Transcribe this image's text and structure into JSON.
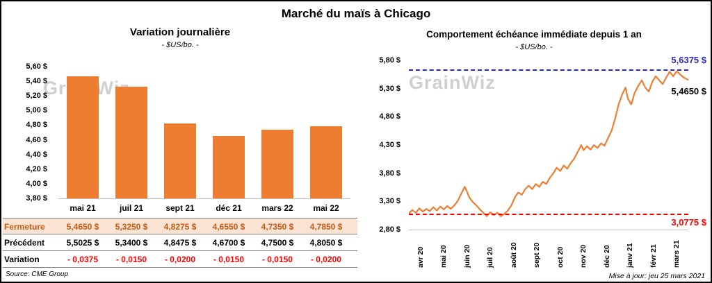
{
  "page": {
    "title": "Marché du maïs à Chicago",
    "source_note": "Source: CME Group",
    "update_note": "Mise à jour: jeu 25 mars 2021",
    "watermark": "GrainWiz"
  },
  "left_panel": {
    "title": "Variation journalière",
    "subtitle": "- $US/bo. -"
  },
  "right_panel": {
    "title": "Comportement échéance immédiate depuis 1 an",
    "subtitle": "- $US/bo. -",
    "high_label": "5,6375 $",
    "last_label": "5,4650 $",
    "low_label": "3,0775 $"
  },
  "table": {
    "rows": [
      {
        "label": "Fermeture",
        "values": [
          "5,4650 $",
          "5,3250 $",
          "4,8275 $",
          "4,6550 $",
          "4,7350 $",
          "4,7850 $"
        ]
      },
      {
        "label": "Précédent",
        "values": [
          "5,5025 $",
          "5,3400 $",
          "4,8475 $",
          "4,6700 $",
          "4,7500 $",
          "4,8050 $"
        ]
      },
      {
        "label": "Variation",
        "values": [
          "- 0,0375",
          "- 0,0150",
          "- 0,0200",
          "- 0,0150",
          "- 0,0150",
          "- 0,0200"
        ]
      }
    ]
  },
  "chart_data": [
    {
      "type": "bar",
      "title": "Variation journalière",
      "subtitle": "- $US/bo. -",
      "categories": [
        "mai 21",
        "juil 21",
        "sept 21",
        "déc 21",
        "mars 22",
        "mai 22"
      ],
      "values": [
        5.465,
        5.325,
        4.8275,
        4.655,
        4.735,
        4.785
      ],
      "ylim": [
        3.8,
        5.6
      ],
      "y_ticks": [
        "5,60 $",
        "5,40 $",
        "5,20 $",
        "5,00 $",
        "4,80 $",
        "4,60 $",
        "4,40 $",
        "4,20 $",
        "4,00 $",
        "3,80 $"
      ],
      "bar_color": "#ED7D31",
      "grid": false,
      "legend": "none"
    },
    {
      "type": "line",
      "title": "Comportement échéance immédiate depuis 1 an",
      "subtitle": "- $US/bo. -",
      "x_labels": [
        "avr 20",
        "mai 20",
        "juin 20",
        "juil 20",
        "août 20",
        "sept 20",
        "oct 20",
        "nov 20",
        "déc 20",
        "janv 21",
        "févr 21",
        "mars 21"
      ],
      "ylim": [
        2.8,
        5.8
      ],
      "y_ticks": [
        "5,80 $",
        "5,30 $",
        "4,80 $",
        "4,30 $",
        "3,80 $",
        "3,30 $",
        "2,80 $"
      ],
      "line_color": "#ED7D31",
      "grid": false,
      "legend": "none",
      "last_value": 5.465,
      "reference_lines": [
        {
          "value": 5.6375,
          "label": "5,6375 $",
          "color": "#2929B8",
          "style": "dashed"
        },
        {
          "value": 3.0775,
          "label": "3,0775 $",
          "color": "#FF0000",
          "style": "dashed"
        }
      ],
      "series": [
        {
          "name": "maïs échéance immédiate",
          "points": [
            [
              0,
              3.1
            ],
            [
              0.15,
              3.16
            ],
            [
              0.3,
              3.11
            ],
            [
              0.45,
              3.19
            ],
            [
              0.6,
              3.13
            ],
            [
              0.75,
              3.18
            ],
            [
              0.9,
              3.14
            ],
            [
              1.05,
              3.21
            ],
            [
              1.2,
              3.15
            ],
            [
              1.35,
              3.22
            ],
            [
              1.5,
              3.17
            ],
            [
              1.65,
              3.23
            ],
            [
              1.8,
              3.18
            ],
            [
              1.95,
              3.24
            ],
            [
              2.1,
              3.32
            ],
            [
              2.25,
              3.45
            ],
            [
              2.4,
              3.57
            ],
            [
              2.5,
              3.48
            ],
            [
              2.6,
              3.38
            ],
            [
              2.75,
              3.3
            ],
            [
              2.9,
              3.24
            ],
            [
              3.05,
              3.17
            ],
            [
              3.2,
              3.11
            ],
            [
              3.35,
              3.05
            ],
            [
              3.5,
              3.12
            ],
            [
              3.65,
              3.07
            ],
            [
              3.8,
              3.11
            ],
            [
              3.95,
              3.05
            ],
            [
              4.1,
              3.09
            ],
            [
              4.25,
              3.15
            ],
            [
              4.4,
              3.24
            ],
            [
              4.55,
              3.38
            ],
            [
              4.7,
              3.47
            ],
            [
              4.85,
              3.43
            ],
            [
              5.0,
              3.53
            ],
            [
              5.15,
              3.59
            ],
            [
              5.3,
              3.53
            ],
            [
              5.45,
              3.62
            ],
            [
              5.6,
              3.57
            ],
            [
              5.75,
              3.66
            ],
            [
              5.9,
              3.62
            ],
            [
              6.05,
              3.73
            ],
            [
              6.2,
              3.81
            ],
            [
              6.35,
              3.91
            ],
            [
              6.5,
              3.85
            ],
            [
              6.65,
              3.95
            ],
            [
              6.8,
              3.89
            ],
            [
              6.95,
              3.99
            ],
            [
              7.1,
              4.07
            ],
            [
              7.25,
              4.19
            ],
            [
              7.4,
              4.31
            ],
            [
              7.5,
              4.22
            ],
            [
              7.65,
              4.29
            ],
            [
              7.8,
              4.23
            ],
            [
              7.95,
              4.31
            ],
            [
              8.1,
              4.26
            ],
            [
              8.25,
              4.34
            ],
            [
              8.4,
              4.3
            ],
            [
              8.55,
              4.43
            ],
            [
              8.7,
              4.56
            ],
            [
              8.85,
              4.77
            ],
            [
              9.0,
              5.02
            ],
            [
              9.15,
              5.2
            ],
            [
              9.3,
              5.33
            ],
            [
              9.4,
              5.14
            ],
            [
              9.55,
              5.03
            ],
            [
              9.7,
              5.24
            ],
            [
              9.85,
              5.36
            ],
            [
              10.0,
              5.46
            ],
            [
              10.15,
              5.33
            ],
            [
              10.3,
              5.26
            ],
            [
              10.45,
              5.43
            ],
            [
              10.6,
              5.53
            ],
            [
              10.75,
              5.46
            ],
            [
              10.9,
              5.39
            ],
            [
              11.05,
              5.51
            ],
            [
              11.2,
              5.61
            ],
            [
              11.35,
              5.53
            ],
            [
              11.5,
              5.62
            ],
            [
              11.65,
              5.56
            ],
            [
              11.8,
              5.51
            ],
            [
              12,
              5.465
            ]
          ]
        }
      ]
    }
  ]
}
